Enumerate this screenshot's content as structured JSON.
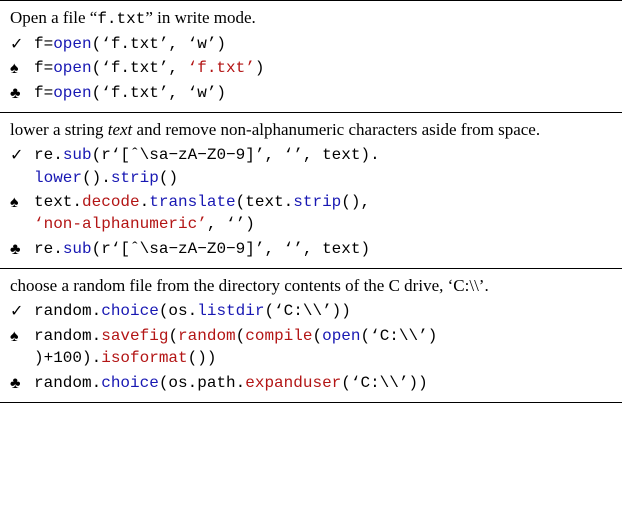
{
  "colors": {
    "func": "#1818b3",
    "str": "#b31515",
    "err": "#b31515",
    "plain": "#000000",
    "background": "#ffffff",
    "rule": "#000000"
  },
  "font": {
    "serif_family": "Times New Roman",
    "mono_family": "Courier New",
    "base_size_pt": 13,
    "code_size_pt": 12
  },
  "markers": {
    "check": "✓",
    "spade": "♠",
    "club": "♣"
  },
  "sections": [
    {
      "prompt_parts": [
        {
          "t": "Open a file “",
          "style": "serif"
        },
        {
          "t": "f.txt",
          "style": "mono"
        },
        {
          "t": "” in write mode.",
          "style": "serif"
        }
      ],
      "rows": [
        {
          "marker": "check",
          "tokens": [
            {
              "t": "f=",
              "c": "plain"
            },
            {
              "t": "open",
              "c": "func"
            },
            {
              "t": "(‘f.txt’, ‘w’)",
              "c": "plain"
            }
          ]
        },
        {
          "marker": "spade",
          "tokens": [
            {
              "t": "f=",
              "c": "plain"
            },
            {
              "t": "open",
              "c": "func"
            },
            {
              "t": "(‘f.txt’, ",
              "c": "plain"
            },
            {
              "t": "‘f.txt’",
              "c": "err"
            },
            {
              "t": ")",
              "c": "plain"
            }
          ]
        },
        {
          "marker": "club",
          "tokens": [
            {
              "t": "f=",
              "c": "plain"
            },
            {
              "t": "open",
              "c": "func"
            },
            {
              "t": "(‘f.txt’, ‘w’)",
              "c": "plain"
            }
          ]
        }
      ]
    },
    {
      "prompt_parts": [
        {
          "t": "lower a string ",
          "style": "serif"
        },
        {
          "t": "text",
          "style": "ital"
        },
        {
          "t": " and remove non-alphanumeric characters aside from space.",
          "style": "serif"
        }
      ],
      "rows": [
        {
          "marker": "check",
          "tokens": [
            {
              "t": "re.",
              "c": "plain"
            },
            {
              "t": "sub",
              "c": "func"
            },
            {
              "t": "(r‘[ˆ\\sa−zA−Z0−9]’, ‘’, text).\n",
              "c": "plain"
            },
            {
              "t": "lower",
              "c": "func"
            },
            {
              "t": "().",
              "c": "plain"
            },
            {
              "t": "strip",
              "c": "func"
            },
            {
              "t": "()",
              "c": "plain"
            }
          ]
        },
        {
          "marker": "spade",
          "tokens": [
            {
              "t": "text.",
              "c": "plain"
            },
            {
              "t": "decode",
              "c": "err"
            },
            {
              "t": ".",
              "c": "plain"
            },
            {
              "t": "translate",
              "c": "func"
            },
            {
              "t": "(text.",
              "c": "plain"
            },
            {
              "t": "strip",
              "c": "func"
            },
            {
              "t": "(),\n",
              "c": "plain"
            },
            {
              "t": "‘non-alphanumeric’",
              "c": "err"
            },
            {
              "t": ", ‘’)",
              "c": "plain"
            }
          ]
        },
        {
          "marker": "club",
          "tokens": [
            {
              "t": "re.",
              "c": "plain"
            },
            {
              "t": "sub",
              "c": "func"
            },
            {
              "t": "(r‘[ˆ\\sa−zA−Z0−9]’, ‘’, text)",
              "c": "plain"
            }
          ]
        }
      ]
    },
    {
      "prompt_parts": [
        {
          "t": "choose a random file from the directory contents of the C drive, ‘C:",
          "style": "serif"
        },
        {
          "t": "\\\\",
          "style": "serif"
        },
        {
          "t": "’.",
          "style": "serif"
        }
      ],
      "rows": [
        {
          "marker": "check",
          "tokens": [
            {
              "t": "random.",
              "c": "plain"
            },
            {
              "t": "choice",
              "c": "func"
            },
            {
              "t": "(os.",
              "c": "plain"
            },
            {
              "t": "listdir",
              "c": "func"
            },
            {
              "t": "(‘C:\\\\’))",
              "c": "plain"
            }
          ]
        },
        {
          "marker": "spade",
          "tokens": [
            {
              "t": "random.",
              "c": "plain"
            },
            {
              "t": "savefig",
              "c": "err"
            },
            {
              "t": "(",
              "c": "plain"
            },
            {
              "t": "random",
              "c": "err"
            },
            {
              "t": "(",
              "c": "plain"
            },
            {
              "t": "compile",
              "c": "err"
            },
            {
              "t": "(",
              "c": "plain"
            },
            {
              "t": "open",
              "c": "func"
            },
            {
              "t": "(‘C:\\\\’)\n)+100).",
              "c": "plain"
            },
            {
              "t": "isoformat",
              "c": "err"
            },
            {
              "t": "())",
              "c": "plain"
            }
          ]
        },
        {
          "marker": "club",
          "tokens": [
            {
              "t": "random.",
              "c": "plain"
            },
            {
              "t": "choice",
              "c": "func"
            },
            {
              "t": "(os.path.",
              "c": "plain"
            },
            {
              "t": "expanduser",
              "c": "err"
            },
            {
              "t": "(‘C:\\\\’))",
              "c": "plain"
            }
          ]
        }
      ]
    }
  ]
}
